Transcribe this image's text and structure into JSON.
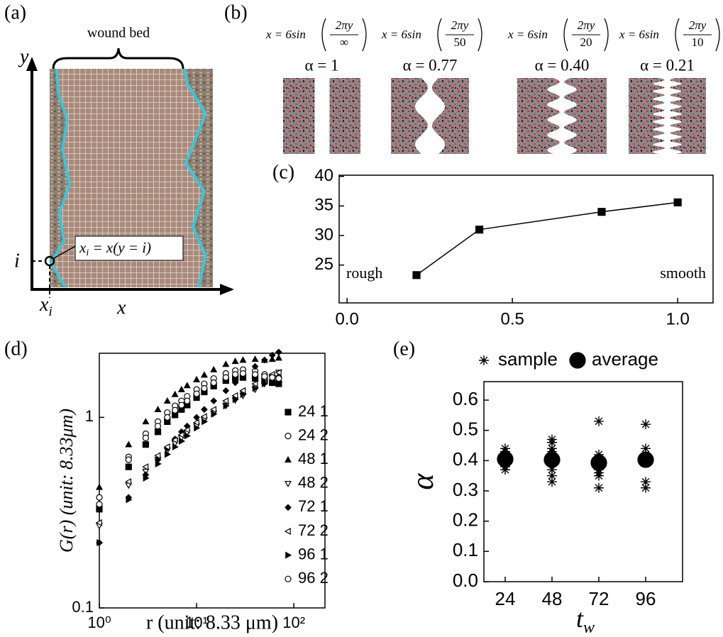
{
  "panel_labels": {
    "a": "(a)",
    "b": "(b)",
    "c": "(c)",
    "d": "(d)",
    "e": "(e)"
  },
  "panel_a": {
    "annotation": "wound bed",
    "y_axis": "y",
    "x_axis": "x",
    "i_label": "i",
    "xi_label": {
      "base": "x",
      "sub": "i"
    },
    "formula": {
      "base": "x",
      "sub": "i",
      "rest": " = x(y = i)"
    }
  },
  "panel_b": [
    {
      "prefix": "x = 6sin",
      "numerator": "2πy",
      "denominator": "∞",
      "alpha": "α = 1"
    },
    {
      "prefix": "x = 6sin",
      "numerator": "2πy",
      "denominator": "50",
      "alpha": "α = 0.77"
    },
    {
      "prefix": "x = 6sin",
      "numerator": "2πy",
      "denominator": "20",
      "alpha": "α = 0.40"
    },
    {
      "prefix": "x = 6sin",
      "numerator": "2πy",
      "denominator": "10",
      "alpha": "α = 0.21"
    }
  ],
  "chart_data": [
    {
      "type": "line",
      "x": [
        0.21,
        0.4,
        0.77,
        1.0
      ],
      "values": [
        23.3,
        31.0,
        34.0,
        35.6
      ],
      "color": "#000000",
      "marker": "square",
      "xlim": [
        -0.024,
        1.107
      ],
      "ylim": [
        18.6,
        40.2
      ],
      "xticks": [
        {
          "value": 0,
          "label": "0.0"
        },
        0.5,
        {
          "value": 1,
          "label": "1.0"
        }
      ],
      "yticks": [
        25,
        30,
        35,
        40
      ],
      "annotations": [
        "rough",
        "smooth"
      ]
    },
    {
      "type": "scatter",
      "log_x": true,
      "log_y": true,
      "xlabel": "r (unit: 8.33 μm)",
      "ylabel": "G(r) (unit: 8.33μm)",
      "xlim": [
        1,
        209
      ],
      "ylim": [
        0.1,
        2.17
      ],
      "xticks": [
        {
          "value": 1,
          "label": "10⁰"
        },
        {
          "value": 10,
          "label": "10¹"
        },
        {
          "value": 100,
          "label": "10²"
        }
      ],
      "yticks": [
        0.1,
        1
      ],
      "legend": "right",
      "x": [
        1,
        2,
        3,
        4,
        5,
        6,
        7,
        8,
        10,
        12,
        15,
        20,
        25,
        30,
        40,
        50,
        60,
        70
      ],
      "series": [
        {
          "name": "24 1",
          "color": "#000000",
          "marker": "square",
          "filled": true,
          "values": [
            0.33,
            0.55,
            0.72,
            0.84,
            0.95,
            1.03,
            1.1,
            1.16,
            1.27,
            1.36,
            1.46,
            1.56,
            1.6,
            1.62,
            1.6,
            1.55,
            1.52,
            1.5
          ]
        },
        {
          "name": "24 2",
          "color": "#000000",
          "marker": "circle",
          "filled": false,
          "values": [
            0.38,
            0.62,
            0.82,
            0.95,
            1.06,
            1.15,
            1.22,
            1.29,
            1.4,
            1.5,
            1.6,
            1.7,
            1.76,
            1.78,
            1.75,
            1.68,
            1.65,
            1.62
          ]
        },
        {
          "name": "48 1",
          "color": "#000000",
          "marker": "triangle-up",
          "filled": true,
          "values": [
            0.43,
            0.72,
            0.95,
            1.1,
            1.22,
            1.32,
            1.4,
            1.47,
            1.58,
            1.67,
            1.78,
            1.9,
            1.97,
            2.0,
            2.02,
            2.0,
            2.02,
            2.05
          ]
        },
        {
          "name": "48 2",
          "color": "#000000",
          "marker": "triangle-down",
          "filled": false,
          "values": [
            0.27,
            0.44,
            0.52,
            0.6,
            0.67,
            0.73,
            0.78,
            0.83,
            0.9,
            0.97,
            1.05,
            1.15,
            1.23,
            1.3,
            1.4,
            1.5,
            1.62,
            1.72
          ]
        },
        {
          "name": "72 1",
          "color": "#000000",
          "marker": "diamond",
          "filled": true,
          "values": [
            0.22,
            0.38,
            0.5,
            0.6,
            0.69,
            0.77,
            0.84,
            0.9,
            1.0,
            1.1,
            1.22,
            1.38,
            1.52,
            1.65,
            1.85,
            2.0,
            2.12,
            2.2
          ]
        },
        {
          "name": "72 2",
          "color": "#000000",
          "marker": "triangle-left",
          "filled": false,
          "values": [
            0.28,
            0.46,
            0.55,
            0.63,
            0.7,
            0.76,
            0.81,
            0.86,
            0.94,
            1.01,
            1.1,
            1.22,
            1.3,
            1.38,
            1.5,
            1.6,
            1.68,
            1.72
          ]
        },
        {
          "name": "96 1",
          "color": "#000000",
          "marker": "triangle-right",
          "filled": true,
          "values": [
            0.22,
            0.37,
            0.48,
            0.57,
            0.64,
            0.7,
            0.75,
            0.8,
            0.88,
            0.95,
            1.04,
            1.15,
            1.24,
            1.32,
            1.42,
            1.5,
            1.55,
            1.55
          ]
        },
        {
          "name": "96 2",
          "color": "#000000",
          "marker": "circle",
          "filled": false,
          "values": [
            0.35,
            0.6,
            0.78,
            0.9,
            1.0,
            1.09,
            1.16,
            1.22,
            1.33,
            1.42,
            1.52,
            1.62,
            1.68,
            1.7,
            1.68,
            1.64,
            1.62,
            1.6
          ]
        }
      ]
    },
    {
      "type": "scatter",
      "xlabel": {
        "base": "t",
        "sub": "w"
      },
      "ylabel": "α",
      "xlim": [
        13.1,
        114.9
      ],
      "ylim": [
        0,
        0.661
      ],
      "xticks": [
        24,
        48,
        72,
        96
      ],
      "yticks": [
        {
          "value": 0,
          "label": "0.0"
        },
        0.1,
        0.2,
        0.3,
        0.4,
        0.5,
        0.6
      ],
      "legend": "top",
      "series": [
        {
          "name": "sample",
          "color": "#000000",
          "marker": "asterisk",
          "filled": false,
          "x": [
            24,
            24,
            24,
            24,
            24,
            24,
            48,
            48,
            48,
            48,
            48,
            48,
            48,
            48,
            48,
            48,
            72,
            72,
            72,
            72,
            72,
            72,
            72,
            72,
            96,
            96,
            96,
            96,
            96
          ],
          "values": [
            0.44,
            0.43,
            0.41,
            0.39,
            0.38,
            0.37,
            0.47,
            0.46,
            0.44,
            0.43,
            0.41,
            0.4,
            0.39,
            0.37,
            0.35,
            0.33,
            0.53,
            0.42,
            0.4,
            0.38,
            0.37,
            0.36,
            0.35,
            0.31,
            0.52,
            0.44,
            0.42,
            0.33,
            0.31
          ]
        },
        {
          "name": "average",
          "color": "#000000",
          "marker": "circle",
          "filled": true,
          "x": [
            24,
            48,
            72,
            96
          ],
          "values": [
            0.405,
            0.403,
            0.393,
            0.403
          ]
        }
      ]
    }
  ]
}
